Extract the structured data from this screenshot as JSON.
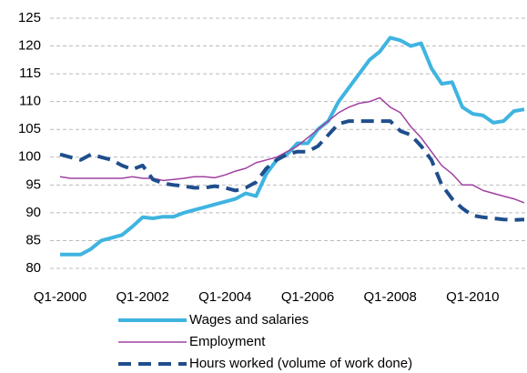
{
  "chart_data": {
    "type": "line",
    "categories": [
      "Q1-2000",
      null,
      null,
      null,
      null,
      null,
      null,
      null,
      "Q1-2002",
      null,
      null,
      null,
      null,
      null,
      null,
      null,
      "Q1-2004",
      null,
      null,
      null,
      null,
      null,
      null,
      null,
      "Q1-2006",
      null,
      null,
      null,
      null,
      null,
      null,
      null,
      "Q1-2008",
      null,
      null,
      null,
      null,
      null,
      null,
      null,
      "Q1-2010",
      null,
      null,
      null,
      null,
      null
    ],
    "series": [
      {
        "name": "Wages and salaries",
        "color": "#3fb4e0",
        "linewidth": 4,
        "line_style": "solid",
        "values": [
          82.5,
          82.5,
          82.5,
          83.5,
          85,
          85.5,
          86,
          87.5,
          89.2,
          89,
          89.3,
          89.3,
          90,
          90.5,
          91,
          91.5,
          92,
          92.5,
          93.5,
          93,
          97,
          99.5,
          100.5,
          102.5,
          102.5,
          105,
          106.5,
          110,
          112.5,
          115,
          117.5,
          119,
          121.5,
          121,
          120,
          120.5,
          116,
          113.2,
          113.5,
          109,
          107.8,
          107.5,
          106.2,
          106.5,
          108.3,
          108.6
        ]
      },
      {
        "name": "Employment",
        "color": "#a040a0",
        "linewidth": 1.5,
        "line_style": "solid",
        "values": [
          96.5,
          96.2,
          96.2,
          96.2,
          96.2,
          96.2,
          96.2,
          96.5,
          96.2,
          96.2,
          95.8,
          96,
          96.2,
          96.5,
          96.5,
          96.3,
          96.8,
          97.5,
          98,
          99,
          99.5,
          100,
          101,
          102,
          103.5,
          105,
          106.5,
          108,
          109,
          109.7,
          110,
          110.7,
          109,
          108,
          105.5,
          103.5,
          101,
          98.5,
          97,
          95,
          95,
          94,
          93.5,
          93,
          92.5,
          91.8
        ]
      },
      {
        "name": "Hours worked (volume of work done)",
        "color": "#1f4e8c",
        "linewidth": 4,
        "line_style": "dashed",
        "values": [
          100.5,
          100,
          99.5,
          100.5,
          100,
          99.5,
          98.5,
          97.8,
          98.5,
          96,
          95.3,
          95,
          94.8,
          94.5,
          94.5,
          94.8,
          94.5,
          94,
          94.5,
          95.5,
          98,
          99.5,
          100.5,
          101,
          101,
          102,
          104,
          106,
          106.5,
          106.5,
          106.5,
          106.5,
          106.5,
          104.7,
          104,
          102,
          99.5,
          95,
          92.5,
          90.8,
          89.5,
          89.2,
          89,
          88.8,
          88.7,
          88.8
        ]
      }
    ],
    "ylim": [
      80,
      125
    ],
    "yticks": [
      80,
      85,
      90,
      95,
      100,
      105,
      110,
      115,
      120,
      125
    ],
    "grid": true,
    "legend": "bottom"
  }
}
